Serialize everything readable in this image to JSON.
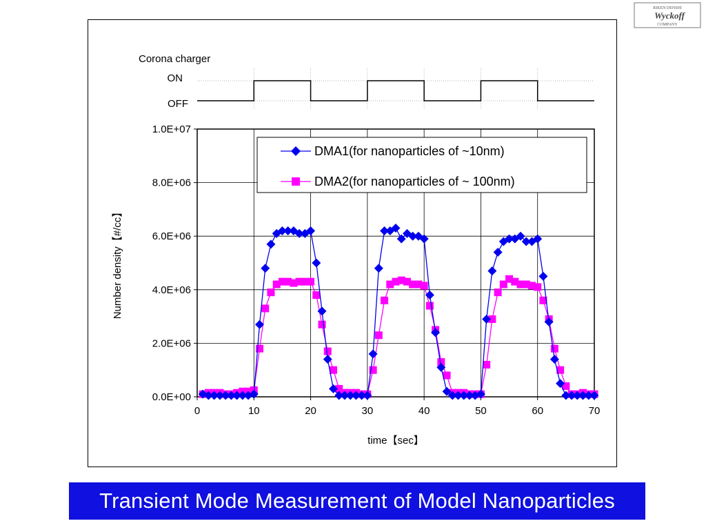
{
  "logo": {
    "text": "Wyckoff",
    "arc_top": "RIKEN DENSHI",
    "arc_bottom": "COMPANY"
  },
  "title_banner": "Transient Mode Measurement of Model Nanoparticles",
  "colors": {
    "dma1": "#0000ee",
    "dma2": "#ff00ff",
    "banner": "#1010e0",
    "grid": "#000000"
  },
  "chart_data": [
    {
      "type": "step",
      "title": "Corona charger",
      "levels": [
        "OFF",
        "ON"
      ],
      "x": [
        0,
        10,
        10,
        20,
        20,
        30,
        30,
        40,
        40,
        50,
        50,
        60,
        60,
        70
      ],
      "state": [
        0,
        0,
        1,
        1,
        0,
        0,
        1,
        1,
        0,
        0,
        1,
        1,
        0,
        0
      ],
      "xlim": [
        0,
        70
      ]
    },
    {
      "type": "line",
      "xlabel": "time【sec】",
      "ylabel": "Number density【#/cc】",
      "xlim": [
        0,
        70
      ],
      "ylim": [
        0,
        10000000
      ],
      "xticks": [
        "0",
        "10",
        "20",
        "30",
        "40",
        "50",
        "60",
        "70"
      ],
      "yticks": [
        "0.0E+00",
        "2.0E+06",
        "4.0E+06",
        "6.0E+06",
        "8.0E+06",
        "1.0E+07"
      ],
      "grid": "vertical at x=10,20,...; horizontal at y=2E6 steps",
      "legend_position": "top-right",
      "series": [
        {
          "name": "DMA1(for nanoparticles of ~10nm)",
          "marker": "diamond",
          "points": [
            [
              1,
              100000
            ],
            [
              2,
              50000
            ],
            [
              3,
              50000
            ],
            [
              4,
              50000
            ],
            [
              5,
              50000
            ],
            [
              6,
              50000
            ],
            [
              7,
              50000
            ],
            [
              8,
              50000
            ],
            [
              9,
              50000
            ],
            [
              10,
              100000
            ],
            [
              11,
              2700000
            ],
            [
              12,
              4800000
            ],
            [
              13,
              5700000
            ],
            [
              14,
              6100000
            ],
            [
              15,
              6200000
            ],
            [
              16,
              6200000
            ],
            [
              17,
              6200000
            ],
            [
              18,
              6100000
            ],
            [
              19,
              6100000
            ],
            [
              20,
              6200000
            ],
            [
              21,
              5000000
            ],
            [
              22,
              3200000
            ],
            [
              23,
              1400000
            ],
            [
              24,
              300000
            ],
            [
              25,
              50000
            ],
            [
              26,
              50000
            ],
            [
              27,
              50000
            ],
            [
              28,
              50000
            ],
            [
              29,
              50000
            ],
            [
              30,
              50000
            ],
            [
              31,
              1600000
            ],
            [
              32,
              4800000
            ],
            [
              33,
              6200000
            ],
            [
              34,
              6200000
            ],
            [
              35,
              6300000
            ],
            [
              36,
              5900000
            ],
            [
              37,
              6100000
            ],
            [
              38,
              6000000
            ],
            [
              39,
              6000000
            ],
            [
              40,
              5900000
            ],
            [
              41,
              3800000
            ],
            [
              42,
              2400000
            ],
            [
              43,
              1100000
            ],
            [
              44,
              200000
            ],
            [
              45,
              50000
            ],
            [
              46,
              50000
            ],
            [
              47,
              50000
            ],
            [
              48,
              50000
            ],
            [
              49,
              50000
            ],
            [
              50,
              100000
            ],
            [
              51,
              2900000
            ],
            [
              52,
              4700000
            ],
            [
              53,
              5400000
            ],
            [
              54,
              5800000
            ],
            [
              55,
              5900000
            ],
            [
              56,
              5900000
            ],
            [
              57,
              6000000
            ],
            [
              58,
              5800000
            ],
            [
              59,
              5800000
            ],
            [
              60,
              5900000
            ],
            [
              61,
              4500000
            ],
            [
              62,
              2800000
            ],
            [
              63,
              1400000
            ],
            [
              64,
              500000
            ],
            [
              65,
              50000
            ],
            [
              66,
              50000
            ],
            [
              67,
              50000
            ],
            [
              68,
              50000
            ],
            [
              69,
              50000
            ],
            [
              70,
              50000
            ]
          ]
        },
        {
          "name": "DMA2(for nanoparticles of ~ 100nm)",
          "marker": "square",
          "points": [
            [
              1,
              100000
            ],
            [
              2,
              150000
            ],
            [
              3,
              150000
            ],
            [
              4,
              150000
            ],
            [
              5,
              100000
            ],
            [
              6,
              100000
            ],
            [
              7,
              150000
            ],
            [
              8,
              200000
            ],
            [
              9,
              200000
            ],
            [
              10,
              250000
            ],
            [
              11,
              1800000
            ],
            [
              12,
              3300000
            ],
            [
              13,
              3900000
            ],
            [
              14,
              4200000
            ],
            [
              15,
              4300000
            ],
            [
              16,
              4300000
            ],
            [
              17,
              4250000
            ],
            [
              18,
              4300000
            ],
            [
              19,
              4300000
            ],
            [
              20,
              4300000
            ],
            [
              21,
              3800000
            ],
            [
              22,
              2700000
            ],
            [
              23,
              1700000
            ],
            [
              24,
              1000000
            ],
            [
              25,
              300000
            ],
            [
              26,
              150000
            ],
            [
              27,
              150000
            ],
            [
              28,
              150000
            ],
            [
              29,
              100000
            ],
            [
              30,
              100000
            ],
            [
              31,
              1000000
            ],
            [
              32,
              2300000
            ],
            [
              33,
              3600000
            ],
            [
              34,
              4200000
            ],
            [
              35,
              4300000
            ],
            [
              36,
              4350000
            ],
            [
              37,
              4300000
            ],
            [
              38,
              4200000
            ],
            [
              39,
              4200000
            ],
            [
              40,
              4150000
            ],
            [
              41,
              3400000
            ],
            [
              42,
              2500000
            ],
            [
              43,
              1300000
            ],
            [
              44,
              800000
            ],
            [
              45,
              150000
            ],
            [
              46,
              150000
            ],
            [
              47,
              150000
            ],
            [
              48,
              100000
            ],
            [
              49,
              100000
            ],
            [
              50,
              100000
            ],
            [
              51,
              1200000
            ],
            [
              52,
              2900000
            ],
            [
              53,
              3900000
            ],
            [
              54,
              4200000
            ],
            [
              55,
              4400000
            ],
            [
              56,
              4300000
            ],
            [
              57,
              4200000
            ],
            [
              58,
              4200000
            ],
            [
              59,
              4150000
            ],
            [
              60,
              4100000
            ],
            [
              61,
              3600000
            ],
            [
              62,
              2900000
            ],
            [
              63,
              1800000
            ],
            [
              64,
              1000000
            ],
            [
              65,
              400000
            ],
            [
              66,
              100000
            ],
            [
              67,
              100000
            ],
            [
              68,
              150000
            ],
            [
              69,
              100000
            ],
            [
              70,
              100000
            ]
          ]
        }
      ]
    }
  ]
}
